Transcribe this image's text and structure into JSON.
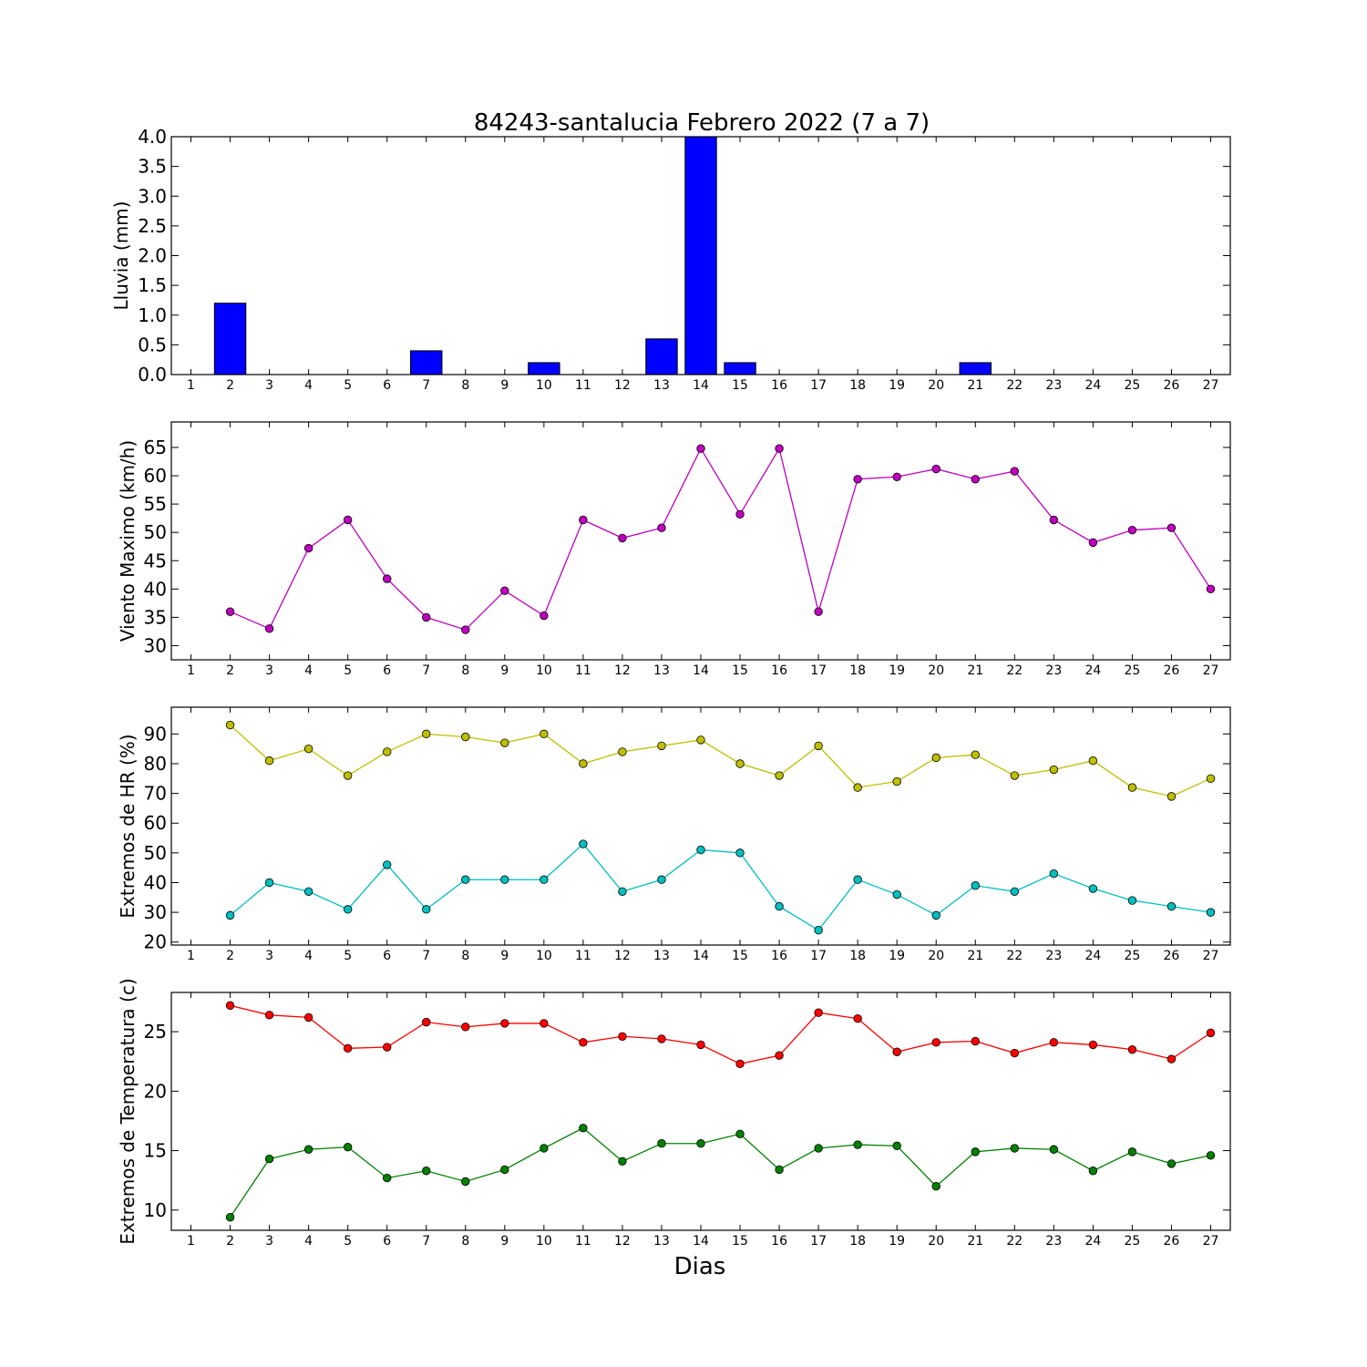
{
  "figure": {
    "title": "84243-santalucia Febrero 2022  (7 a 7)",
    "xlabel": "Dias"
  },
  "chart_data": [
    {
      "type": "bar",
      "title": "84243-santalucia Febrero 2022  (7 a 7)",
      "xlabel": "",
      "ylabel": "Lluvia (mm)",
      "x": [
        1,
        2,
        3,
        4,
        5,
        6,
        7,
        8,
        9,
        10,
        11,
        12,
        13,
        14,
        15,
        16,
        17,
        18,
        19,
        20,
        21,
        22,
        23,
        24,
        25,
        26,
        27
      ],
      "xlim": [
        0.5,
        27.5
      ],
      "ylim": [
        0,
        4.0
      ],
      "yticks": [
        0.0,
        0.5,
        1.0,
        1.5,
        2.0,
        2.5,
        3.0,
        3.5,
        4.0
      ],
      "ytick_labels": [
        "0.0",
        "0.5",
        "1.0",
        "1.5",
        "2.0",
        "2.5",
        "3.0",
        "3.5",
        "4.0"
      ],
      "series": [
        {
          "color": "#0000ff",
          "values": [
            0,
            1.2,
            0,
            0,
            0,
            0,
            0.4,
            0,
            0,
            0.2,
            0,
            0,
            0.6,
            4.0,
            0.2,
            0,
            0,
            0,
            0,
            0,
            0.2,
            0,
            0,
            0,
            0,
            0,
            0
          ]
        }
      ]
    },
    {
      "type": "line",
      "ylabel": "Viento Maximo (km/h)",
      "x": [
        1,
        2,
        3,
        4,
        5,
        6,
        7,
        8,
        9,
        10,
        11,
        12,
        13,
        14,
        15,
        16,
        17,
        18,
        19,
        20,
        21,
        22,
        23,
        24,
        25,
        26,
        27
      ],
      "xlim": [
        0.5,
        27.5
      ],
      "ylim": [
        27.5,
        69.5
      ],
      "yticks": [
        30,
        35,
        40,
        45,
        50,
        55,
        60,
        65
      ],
      "ytick_labels": [
        "30",
        "35",
        "40",
        "45",
        "50",
        "55",
        "60",
        "65"
      ],
      "series": [
        {
          "color": "#bf00bf",
          "values": [
            null,
            36.0,
            33.0,
            47.2,
            52.2,
            41.8,
            35.0,
            32.8,
            39.7,
            35.3,
            52.2,
            49.0,
            50.8,
            64.8,
            53.2,
            64.8,
            36.0,
            59.4,
            59.8,
            61.2,
            59.4,
            60.8,
            52.2,
            48.2,
            50.4,
            50.8,
            40.0
          ]
        }
      ]
    },
    {
      "type": "line",
      "ylabel": "Extremos de HR (%)",
      "x": [
        1,
        2,
        3,
        4,
        5,
        6,
        7,
        8,
        9,
        10,
        11,
        12,
        13,
        14,
        15,
        16,
        17,
        18,
        19,
        20,
        21,
        22,
        23,
        24,
        25,
        26,
        27
      ],
      "xlim": [
        0.5,
        27.5
      ],
      "ylim": [
        19,
        99
      ],
      "yticks": [
        20,
        30,
        40,
        50,
        60,
        70,
        80,
        90
      ],
      "ytick_labels": [
        "20",
        "30",
        "40",
        "50",
        "60",
        "70",
        "80",
        "90"
      ],
      "series": [
        {
          "color": "#bfbf00",
          "values": [
            null,
            93,
            81,
            85,
            76,
            84,
            90,
            89,
            87,
            90,
            80,
            84,
            86,
            88,
            80,
            76,
            86,
            72,
            74,
            82,
            83,
            76,
            78,
            81,
            72,
            69,
            75
          ]
        },
        {
          "color": "#00bfbf",
          "values": [
            null,
            29,
            40,
            37,
            31,
            46,
            31,
            41,
            41,
            41,
            53,
            37,
            41,
            51,
            50,
            32,
            24,
            41,
            36,
            29,
            39,
            37,
            43,
            38,
            34,
            32,
            30
          ]
        }
      ]
    },
    {
      "type": "line",
      "ylabel": "Extremos de Temperatura (c)",
      "x": [
        1,
        2,
        3,
        4,
        5,
        6,
        7,
        8,
        9,
        10,
        11,
        12,
        13,
        14,
        15,
        16,
        17,
        18,
        19,
        20,
        21,
        22,
        23,
        24,
        25,
        26,
        27
      ],
      "xlim": [
        0.5,
        27.5
      ],
      "ylim": [
        8.3,
        28.3
      ],
      "yticks": [
        10,
        15,
        20,
        25
      ],
      "ytick_labels": [
        "10",
        "15",
        "20",
        "25"
      ],
      "series": [
        {
          "color": "#ff0000",
          "values": [
            null,
            27.2,
            26.4,
            26.2,
            23.6,
            23.7,
            25.8,
            25.4,
            25.7,
            25.7,
            24.1,
            24.6,
            24.4,
            23.9,
            22.3,
            23.0,
            26.6,
            26.1,
            23.3,
            24.1,
            24.2,
            23.2,
            24.1,
            23.9,
            23.5,
            22.7,
            24.9
          ]
        },
        {
          "color": "#008000",
          "values": [
            null,
            9.4,
            14.3,
            15.1,
            15.3,
            12.7,
            13.3,
            12.4,
            13.4,
            15.2,
            16.9,
            14.1,
            15.6,
            15.6,
            16.4,
            13.4,
            15.2,
            15.5,
            15.4,
            12.0,
            14.9,
            15.2,
            15.1,
            13.3,
            14.9,
            13.9,
            14.6
          ]
        }
      ]
    }
  ]
}
